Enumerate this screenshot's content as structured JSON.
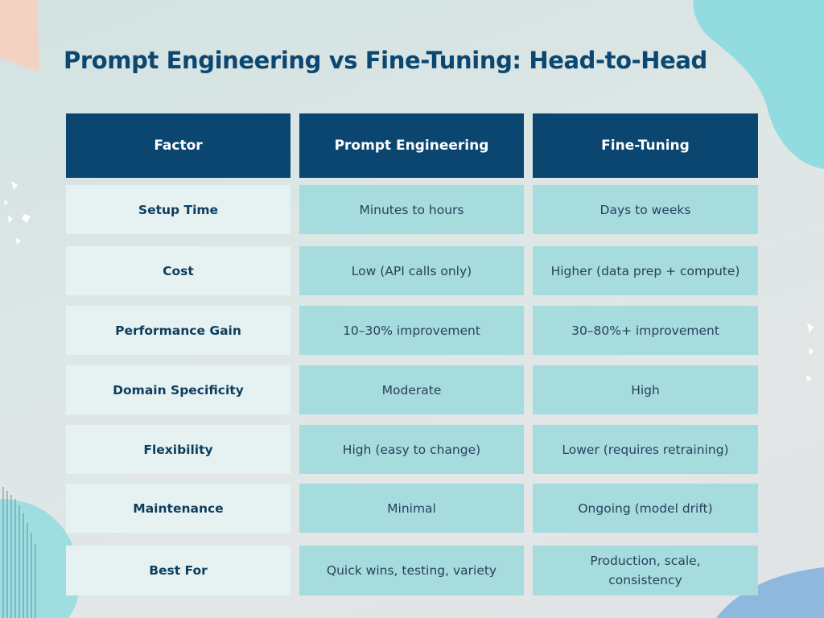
{
  "title": "Prompt Engineering vs Fine-Tuning: Head-to-Head",
  "headers": [
    "Factor",
    "Prompt Engineering",
    "Fine-Tuning"
  ],
  "rows": [
    {
      "factor": "Setup Time",
      "prompt": "Minutes to hours",
      "finetune": "Days to weeks"
    },
    {
      "factor": "Cost",
      "prompt": "Low (API calls only)",
      "finetune": "Higher (data prep + compute)"
    },
    {
      "factor": "Performance Gain",
      "prompt": "10–30% improvement",
      "finetune": "30–80%+ improvement"
    },
    {
      "factor": "Domain Specificity",
      "prompt": "Moderate",
      "finetune": "High"
    },
    {
      "factor": "Flexibility",
      "prompt": "High (easy to change)",
      "finetune": "Lower (requires retraining)"
    },
    {
      "factor": "Maintenance",
      "prompt": "Minimal",
      "finetune": "Ongoing (model drift)"
    },
    {
      "factor": "Best For",
      "prompt": "Quick wins, testing, variety",
      "finetune": "Production, scale, consistency"
    }
  ],
  "colors": {
    "header_bg": "#0b4670",
    "title": "#0c4771",
    "label_bg": "#e6f2f1",
    "value_bg": "#a7dcdf"
  }
}
